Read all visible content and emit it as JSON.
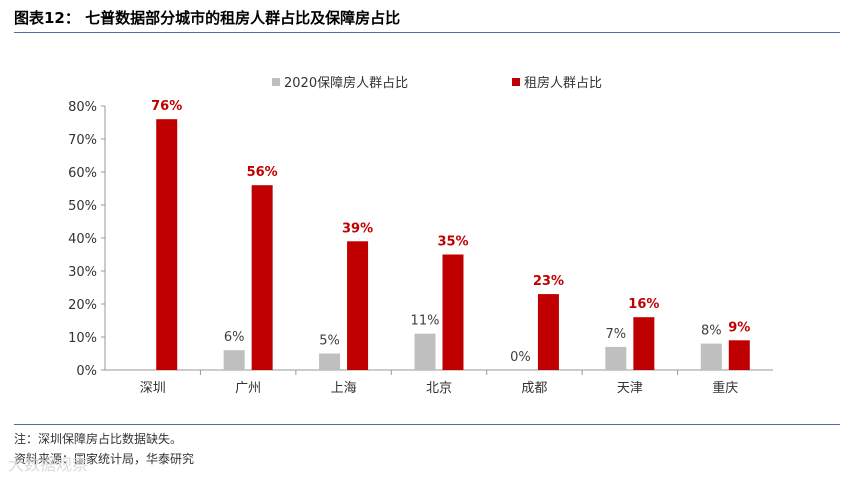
{
  "header": {
    "title": "图表12：  七普数据部分城市的租房人群占比及保障房占比"
  },
  "footer": {
    "note": "注：深圳保障房占比数据缺失。",
    "source": "资料来源：国家统计局，华泰研究",
    "watermark": "大数据观察"
  },
  "chart_data": {
    "type": "bar",
    "categories": [
      "深圳",
      "广州",
      "上海",
      "北京",
      "成都",
      "天津",
      "重庆"
    ],
    "series": [
      {
        "name": "2020保障房人群占比",
        "values": [
          null,
          6,
          5,
          11,
          0,
          7,
          8
        ],
        "labels": [
          "",
          "6%",
          "5%",
          "11%",
          "0%",
          "7%",
          "8%"
        ],
        "color": "#bfbfbf",
        "label_color": "#404040"
      },
      {
        "name": "租房人群占比",
        "values": [
          76,
          56,
          39,
          35,
          23,
          16,
          9
        ],
        "labels": [
          "76%",
          "56%",
          "39%",
          "35%",
          "23%",
          "16%",
          "9%"
        ],
        "color": "#c00000",
        "label_color": "#c00000"
      }
    ],
    "ylim": [
      0,
      80
    ],
    "yticks": [
      "0%",
      "10%",
      "20%",
      "30%",
      "40%",
      "50%",
      "60%",
      "70%",
      "80%"
    ],
    "grid": false,
    "legend": "top-center"
  }
}
